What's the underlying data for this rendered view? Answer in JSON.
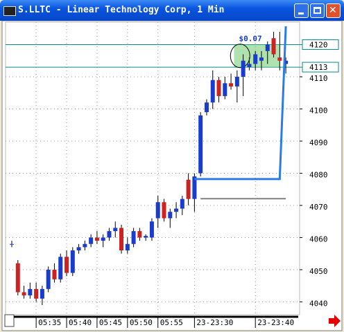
{
  "window": {
    "title": "S.LLTC - Linear Technology Corp, 1 Min"
  },
  "chart_data": {
    "type": "candlestick",
    "categories": [
      null,
      null,
      null,
      null,
      "05:35",
      null,
      null,
      null,
      null,
      "05:40",
      null,
      null,
      null,
      null,
      "05:45",
      null,
      null,
      null,
      null,
      "05:50",
      null,
      null,
      null,
      null,
      "05:55",
      null,
      null,
      null,
      null,
      null,
      "23-23:30",
      null,
      null,
      null,
      null,
      null,
      null,
      null,
      null,
      null,
      "23-23:40",
      null,
      null,
      null,
      null,
      null
    ],
    "open": [
      4058,
      4052,
      4043,
      4042,
      4044,
      4041,
      4044,
      4050,
      4047,
      4054,
      4049,
      4056,
      4057,
      4058,
      4060,
      4059,
      4060,
      4062,
      4063,
      4056,
      4058,
      4062,
      4060,
      4060,
      4066,
      4071,
      4066,
      4068,
      4069,
      4078,
      4072,
      4080,
      4099,
      4102,
      4109,
      4104,
      4108,
      4107,
      4110,
      4113,
      4114,
      4115,
      4118,
      4122,
      4116,
      4114
    ],
    "high": [
      4059,
      4053,
      4045,
      4046,
      4046,
      4045,
      4051,
      4052,
      4055,
      4056,
      4057,
      4058,
      4059,
      4061,
      4062,
      4061,
      4063,
      4065,
      4064,
      4060,
      4063,
      4063,
      4061,
      4066,
      4073,
      4072,
      4069,
      4071,
      4073,
      4080,
      4080,
      4099,
      4103,
      4112,
      4110,
      4110,
      4111,
      4112,
      4117,
      4116,
      4118,
      4118,
      4121,
      4124,
      4124,
      4116
    ],
    "low": [
      4057,
      4042,
      4041,
      4041,
      4040,
      4039,
      4043,
      4046,
      4046,
      4048,
      4048,
      4055,
      4056,
      4057,
      4058,
      4057,
      4059,
      4060,
      4055,
      4055,
      4057,
      4059,
      4059,
      4059,
      4063,
      4065,
      4063,
      4066,
      4067,
      4070,
      4068,
      4079,
      4098,
      4100,
      4102,
      4103,
      4106,
      4102,
      4104,
      4112,
      4112,
      4112,
      4114,
      4116,
      4112,
      4111
    ],
    "close": [
      4058,
      4043,
      4042,
      4044,
      4041,
      4044,
      4050,
      4047,
      4054,
      4049,
      4056,
      4057,
      4058,
      4060,
      4059,
      4060,
      4062,
      4063,
      4056,
      4058,
      4062,
      4060,
      4060.5,
      4065,
      4071,
      4066,
      4068,
      4069,
      4072,
      4072,
      4079,
      4098,
      4102,
      4109,
      4104,
      4108,
      4107,
      4110,
      4115,
      4114,
      4117,
      4116,
      4120,
      4117,
      4115,
      4115
    ],
    "up_color": "#1a3ccc",
    "down_color": "#cc2222",
    "ylim": [
      4036,
      4127
    ],
    "yticks": [
      4040,
      4050,
      4060,
      4070,
      4080,
      4090,
      4100,
      4110
    ],
    "grid": true,
    "hlines": [
      4120,
      4113
    ],
    "hline_color": "#008b8b",
    "annotation": "$0.07",
    "blue_line": {
      "x": [
        30,
        44,
        45
      ],
      "y": [
        4078.2,
        4078.2,
        4125.7
      ],
      "color": "#2a7ae8"
    },
    "gray_line": {
      "x": [
        31,
        45
      ],
      "y": [
        4072.1,
        4072.1
      ],
      "color": "#808080"
    }
  }
}
